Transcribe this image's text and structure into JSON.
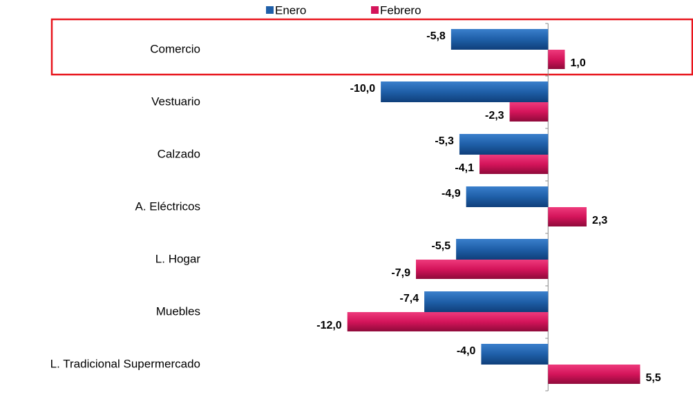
{
  "chart_data": {
    "type": "barh",
    "categories": [
      "Comercio",
      "Vestuario",
      "Calzado",
      "A. Eléctricos",
      "L. Hogar",
      "Muebles",
      "L. Tradicional Supermercado"
    ],
    "series": [
      {
        "name": "Enero",
        "color": "#1f5fa8",
        "values": [
          -5.8,
          -10.0,
          -5.3,
          -4.9,
          -5.5,
          -7.4,
          -4.0
        ],
        "value_labels": [
          "-5,8",
          "-10,0",
          "-5,3",
          "-4,9",
          "-5,5",
          "-7,4",
          "-4,0"
        ]
      },
      {
        "name": "Febrero",
        "color": "#d4145a",
        "values": [
          1.0,
          -2.3,
          -4.1,
          2.3,
          -7.9,
          -12.0,
          5.5
        ],
        "value_labels": [
          "1,0",
          "-2,3",
          "-4,1",
          "2,3",
          "-7,9",
          "-12,0",
          "5,5"
        ]
      }
    ],
    "xlim": [
      -20,
      8
    ],
    "legend": "top"
  }
}
